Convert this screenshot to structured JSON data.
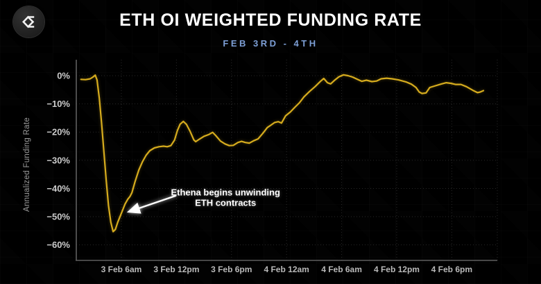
{
  "header": {
    "logo_icon": "velo-sigma-logo",
    "title": "ETH OI WEIGHTED FUNDING RATE",
    "subtitle": "FEB 3RD - 4TH"
  },
  "colors": {
    "background": "#000000",
    "title_text": "#ffffff",
    "subtitle_text": "#7d9fd6",
    "line": "#d6ac1e",
    "axis": "#5f5f5f",
    "grid": "#3c3c3c",
    "y_tick_label": "#cbcbcb",
    "x_tick_label": "#b9b9b9",
    "axis_title": "#9b9b9b",
    "annotation": "#ffffff"
  },
  "chart_data": {
    "type": "line",
    "title": "ETH OI WEIGHTED FUNDING RATE",
    "subtitle": "FEB 3RD - 4TH",
    "xlabel": "",
    "ylabel": "Annualized Funding Rate",
    "x_unit": "hours since 3 Feb 12am",
    "xlim": [
      1.09,
      46.96
    ],
    "ylim": [
      -65.5,
      5.66
    ],
    "grid": true,
    "legend": "none",
    "y_ticks": [
      {
        "v": 0,
        "label": "0%"
      },
      {
        "v": -10,
        "label": "−10%"
      },
      {
        "v": -20,
        "label": "−20%"
      },
      {
        "v": -30,
        "label": "−30%"
      },
      {
        "v": -40,
        "label": "−40%"
      },
      {
        "v": -50,
        "label": "−50%"
      },
      {
        "v": -60,
        "label": "−60%"
      }
    ],
    "x_ticks": [
      {
        "t": 6,
        "label": "3 Feb 6am"
      },
      {
        "t": 12,
        "label": "3 Feb 12pm"
      },
      {
        "t": 18,
        "label": "3 Feb 6pm"
      },
      {
        "t": 24,
        "label": "4 Feb 12am"
      },
      {
        "t": 30,
        "label": "4 Feb 6am"
      },
      {
        "t": 36,
        "label": "4 Feb 12pm"
      },
      {
        "t": 42,
        "label": "4 Feb 6pm"
      }
    ],
    "series": [
      {
        "name": "ETH OI weighted funding rate (annualized %)",
        "color": "#d6ac1e",
        "points": [
          [
            1.6,
            -1.3
          ],
          [
            2.1,
            -1.4
          ],
          [
            2.6,
            -1.1
          ],
          [
            2.95,
            -0.4
          ],
          [
            3.15,
            0.2
          ],
          [
            3.35,
            -1.5
          ],
          [
            3.6,
            -8
          ],
          [
            3.85,
            -17
          ],
          [
            4.1,
            -27
          ],
          [
            4.35,
            -37
          ],
          [
            4.6,
            -46
          ],
          [
            4.85,
            -52
          ],
          [
            5.1,
            -55.3
          ],
          [
            5.35,
            -54.5
          ],
          [
            5.6,
            -52
          ],
          [
            5.85,
            -50
          ],
          [
            6.1,
            -48
          ],
          [
            6.4,
            -45.5
          ],
          [
            6.7,
            -43.8
          ],
          [
            6.95,
            -42.8
          ],
          [
            7.15,
            -41.5
          ],
          [
            7.5,
            -37.5
          ],
          [
            7.9,
            -33.5
          ],
          [
            8.3,
            -30.5
          ],
          [
            8.7,
            -28.2
          ],
          [
            9.1,
            -26.6
          ],
          [
            9.6,
            -25.6
          ],
          [
            10.1,
            -25.2
          ],
          [
            10.6,
            -25.0
          ],
          [
            11.0,
            -25.2
          ],
          [
            11.4,
            -24.8
          ],
          [
            11.8,
            -22.8
          ],
          [
            12.1,
            -19.5
          ],
          [
            12.4,
            -17.2
          ],
          [
            12.75,
            -16.2
          ],
          [
            13.1,
            -17.3
          ],
          [
            13.5,
            -19.8
          ],
          [
            13.9,
            -22.8
          ],
          [
            14.1,
            -23.4
          ],
          [
            14.5,
            -22.5
          ],
          [
            15.0,
            -21.5
          ],
          [
            15.5,
            -20.9
          ],
          [
            15.95,
            -20.1
          ],
          [
            16.3,
            -21.3
          ],
          [
            16.8,
            -23.2
          ],
          [
            17.3,
            -24.2
          ],
          [
            17.75,
            -24.8
          ],
          [
            18.2,
            -24.7
          ],
          [
            18.7,
            -23.7
          ],
          [
            19.1,
            -23.3
          ],
          [
            19.5,
            -23.7
          ],
          [
            19.95,
            -23.9
          ],
          [
            20.4,
            -23.1
          ],
          [
            20.9,
            -22.4
          ],
          [
            21.4,
            -20.5
          ],
          [
            21.9,
            -18.4
          ],
          [
            22.3,
            -17.5
          ],
          [
            22.7,
            -16.6
          ],
          [
            23.1,
            -16.3
          ],
          [
            23.45,
            -16.8
          ],
          [
            23.9,
            -14.2
          ],
          [
            24.4,
            -12.9
          ],
          [
            24.9,
            -11.2
          ],
          [
            25.4,
            -9.6
          ],
          [
            25.9,
            -7.5
          ],
          [
            26.5,
            -5.6
          ],
          [
            27.1,
            -3.9
          ],
          [
            27.7,
            -2.0
          ],
          [
            28.05,
            -1.0
          ],
          [
            28.45,
            -2.5
          ],
          [
            28.8,
            -2.9
          ],
          [
            29.2,
            -1.7
          ],
          [
            29.7,
            -0.4
          ],
          [
            30.2,
            0.3
          ],
          [
            30.7,
            0.0
          ],
          [
            31.2,
            -0.5
          ],
          [
            31.8,
            -1.4
          ],
          [
            32.2,
            -2.0
          ],
          [
            32.7,
            -1.6
          ],
          [
            33.3,
            -2.1
          ],
          [
            33.8,
            -1.9
          ],
          [
            34.3,
            -1.1
          ],
          [
            34.9,
            -0.9
          ],
          [
            35.5,
            -1.1
          ],
          [
            36.2,
            -1.5
          ],
          [
            37.0,
            -2.2
          ],
          [
            37.6,
            -3.0
          ],
          [
            38.1,
            -4.2
          ],
          [
            38.45,
            -5.8
          ],
          [
            38.75,
            -6.3
          ],
          [
            39.2,
            -6.1
          ],
          [
            39.6,
            -4.2
          ],
          [
            40.1,
            -3.7
          ],
          [
            40.8,
            -3.0
          ],
          [
            41.4,
            -2.5
          ],
          [
            41.9,
            -2.7
          ],
          [
            42.4,
            -3.1
          ],
          [
            43.0,
            -3.1
          ],
          [
            43.6,
            -3.9
          ],
          [
            44.3,
            -5.2
          ],
          [
            44.8,
            -6.0
          ],
          [
            45.1,
            -5.8
          ],
          [
            45.45,
            -5.3
          ]
        ]
      }
    ],
    "annotation": {
      "lines": [
        "Ethena begins unwinding",
        "ETH contracts"
      ],
      "text_anchor": {
        "t": 17.35,
        "v": -43.2
      },
      "arrow": {
        "from": {
          "t": 11.9,
          "v": -42.6
        },
        "to": {
          "t": 6.85,
          "v": -48.2
        }
      }
    }
  }
}
